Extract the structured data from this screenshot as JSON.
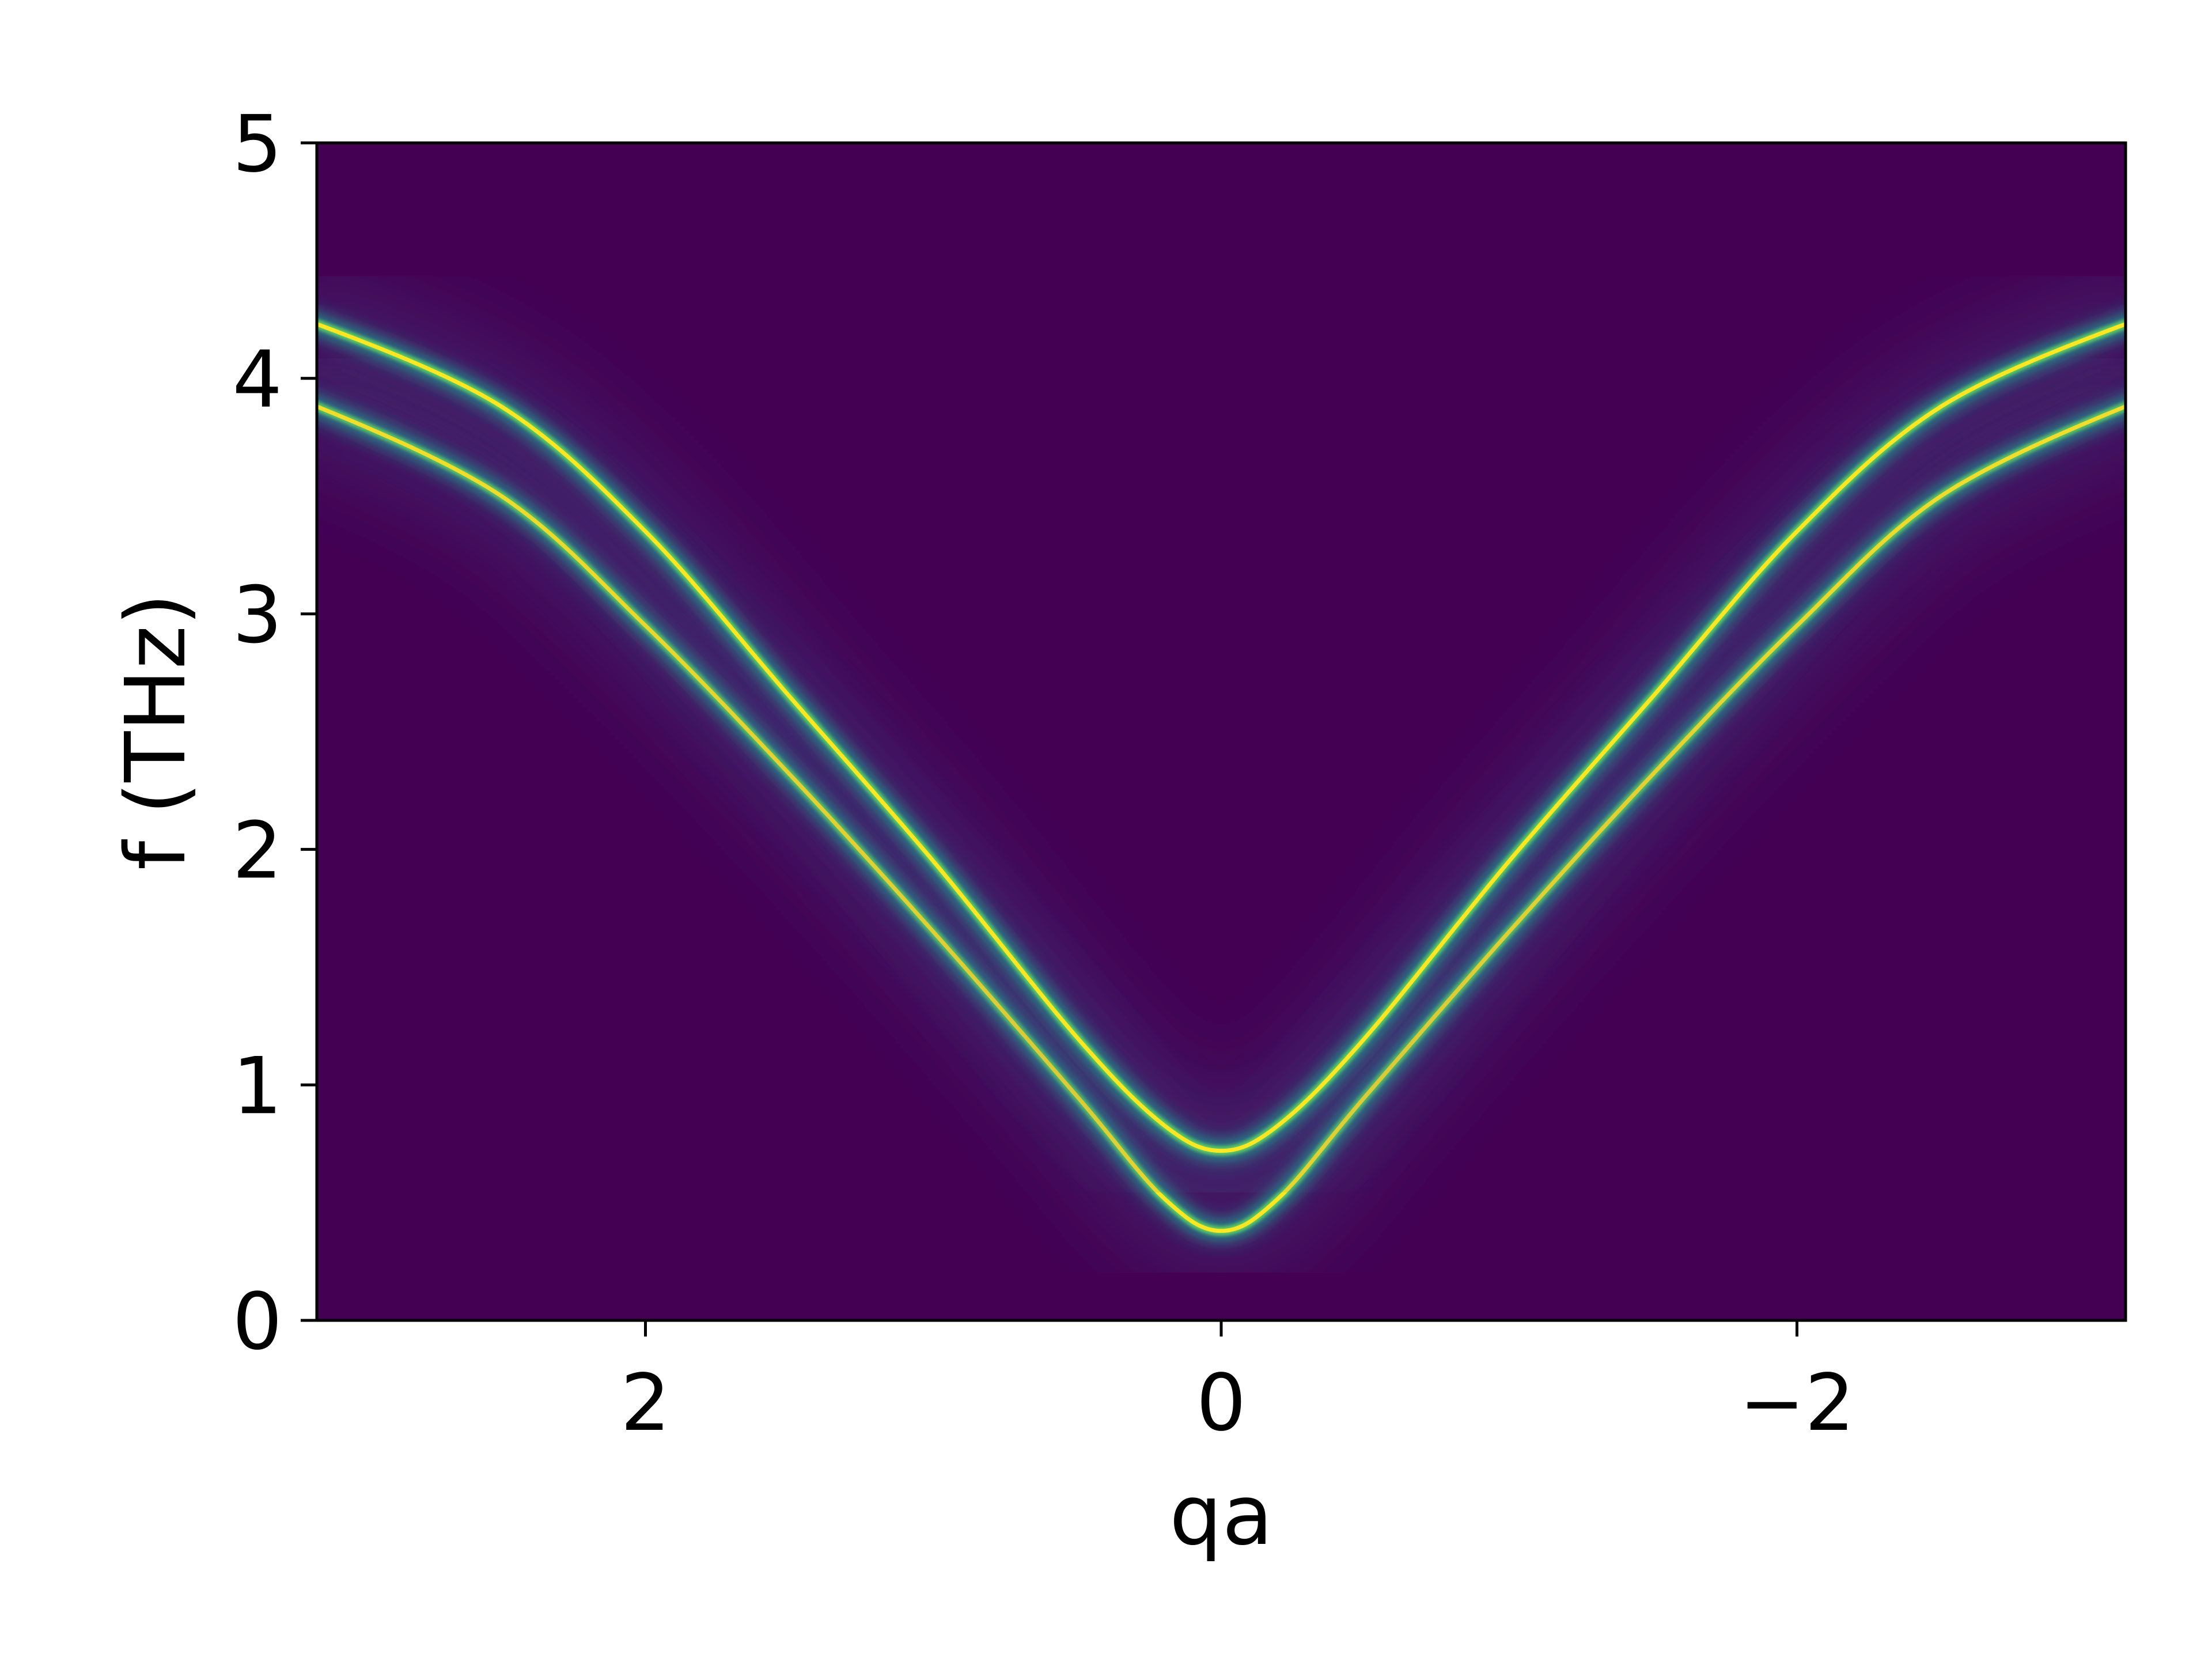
{
  "chart_data": {
    "type": "heatmap",
    "title": "",
    "xlabel": "qa",
    "ylabel": "f (THz)",
    "xlim": [
      3.14159,
      -3.14159
    ],
    "ylim": [
      0,
      5
    ],
    "x_ticks": [
      {
        "value": 2,
        "label": "2"
      },
      {
        "value": 0,
        "label": "0"
      },
      {
        "value": -2,
        "label": "−2"
      }
    ],
    "y_ticks": [
      {
        "value": 0,
        "label": "0"
      },
      {
        "value": 1,
        "label": "1"
      },
      {
        "value": 2,
        "label": "2"
      },
      {
        "value": 3,
        "label": "3"
      },
      {
        "value": 4,
        "label": "4"
      },
      {
        "value": 5,
        "label": "5"
      }
    ],
    "colormap": "viridis",
    "colors": {
      "background": "#440154",
      "band_mid": "#21918c",
      "band_peak": "#fde725"
    },
    "series": [
      {
        "qa": [
          3.14,
          2.5,
          2.0,
          1.5,
          1.0,
          0.5,
          0.2,
          0.0,
          -0.2,
          -0.5,
          -1.0,
          -1.5,
          -2.0,
          -2.5,
          -3.14
        ],
        "f": [
          3.88,
          3.5,
          2.95,
          2.32,
          1.65,
          0.95,
          0.52,
          0.38,
          0.52,
          0.95,
          1.65,
          2.32,
          2.95,
          3.5,
          3.88
        ]
      },
      {
        "qa": [
          3.14,
          2.5,
          2.0,
          1.5,
          1.0,
          0.5,
          0.2,
          0.0,
          -0.2,
          -0.5,
          -1.0,
          -1.5,
          -2.0,
          -2.5,
          -3.14
        ],
        "f": [
          4.23,
          3.88,
          3.35,
          2.65,
          1.95,
          1.2,
          0.83,
          0.72,
          0.83,
          1.2,
          1.95,
          2.65,
          3.35,
          3.88,
          4.23
        ]
      }
    ],
    "grid": false,
    "legend": "none"
  }
}
